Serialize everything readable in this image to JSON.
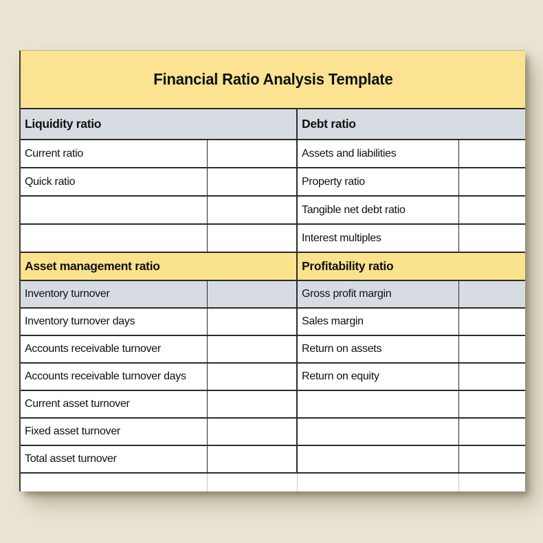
{
  "title": "Financial Ratio Analysis Template",
  "colors": {
    "page_background": "#EAE5D3",
    "title_yellow": "#FBE392",
    "section_yellow": "#FBE28C",
    "header_gray": "#D7DCE3",
    "grid_dark": "#2B2B2B",
    "grid_light": "#C5C8CC",
    "text": "#101010"
  },
  "sections": {
    "liquidity_debt": {
      "left_header": "Liquidity ratio",
      "right_header": "Debt ratio",
      "rows": [
        {
          "left_label": "Current ratio",
          "left_value": "",
          "right_label": "Assets and liabilities",
          "right_value": ""
        },
        {
          "left_label": "Quick ratio",
          "left_value": "",
          "right_label": "Property ratio",
          "right_value": ""
        },
        {
          "left_label": "",
          "left_value": "",
          "right_label": "Tangible net debt ratio",
          "right_value": ""
        },
        {
          "left_label": "",
          "left_value": "",
          "right_label": "Interest multiples",
          "right_value": ""
        }
      ]
    },
    "asset_profitability": {
      "left_header": "Asset management ratio",
      "right_header": "Profitability ratio",
      "rows": [
        {
          "left_label": "Inventory turnover",
          "left_value": "",
          "right_label": "Gross profit margin",
          "right_value": "",
          "highlighted": true
        },
        {
          "left_label": "Inventory turnover days",
          "left_value": "",
          "right_label": "Sales margin",
          "right_value": ""
        },
        {
          "left_label": "Accounts receivable turnover",
          "left_value": "",
          "right_label": "Return on assets",
          "right_value": ""
        },
        {
          "left_label": "Accounts receivable turnover days",
          "left_value": "",
          "right_label": "Return on equity",
          "right_value": ""
        },
        {
          "left_label": "Current asset turnover",
          "left_value": "",
          "right_label": "",
          "right_value": ""
        },
        {
          "left_label": "Fixed asset turnover",
          "left_value": "",
          "right_label": "",
          "right_value": ""
        },
        {
          "left_label": "Total asset turnover",
          "left_value": "",
          "right_label": "",
          "right_value": ""
        }
      ]
    }
  }
}
